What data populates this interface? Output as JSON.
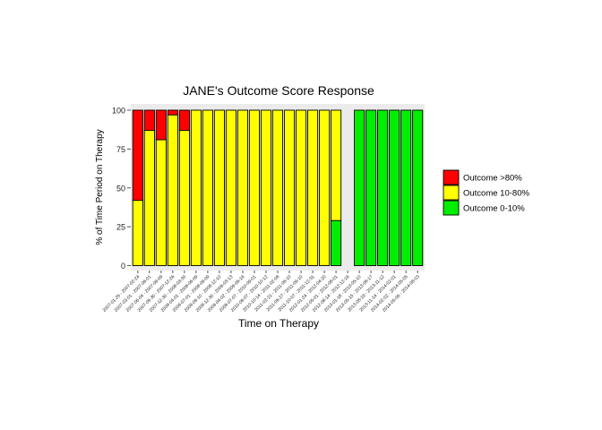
{
  "chart_data": {
    "type": "bar",
    "stacked": true,
    "title": "JANE's Outcome Score Response",
    "xlabel": "Time on Therapy",
    "ylabel": "% of Time Period on Therapy",
    "ylim": [
      0,
      100
    ],
    "yticks": [
      0,
      25,
      50,
      75,
      100
    ],
    "grid": false,
    "legend_position": "right",
    "categories": [
      "2007-01-25 - 2007-02-24",
      "2007-03-01 - 2007-06-01",
      "2007-06-04 - 2007-09-09",
      "2007-09-30 - 2007-12-26",
      "2007-12-30 - 2008-03-30",
      "2008-04-01 - 2008-06-09",
      "2008-07-01 - 2008-09-09",
      "2008-09-10 - 2008-12-10",
      "2008-12-30 - 2009-03-13",
      "2009-04-02 - 2009-06-16",
      "2009-07-07 - 2010-09-01",
      "2010-09-07 - 2010-10-12",
      "2010-10-14 - 2011-02-08",
      "2011-02-21 - 2011-06-10",
      "2011-06-27 - 2011-09-10",
      "2011-10-07 - 2011-12-31",
      "2012-01-24 - 2012-04-20",
      "2012-05-01 - 2012-08-01",
      "2012-08-14 - 2012-12-16",
      "2013-01-18 - 2013-05-10",
      "2013-05-15 - 2013-08-17",
      "2013-08-19 - 2013-11-12",
      "2013-11-14 - 2014-02-01",
      "2014-02-02 - 2014-05-05",
      "2014-05-06 - 2014-08-03"
    ],
    "series": [
      {
        "name": "Outcome 0-10%",
        "color": "#00ee00",
        "values": [
          0,
          0,
          0,
          0,
          0,
          0,
          0,
          0,
          0,
          0,
          0,
          0,
          0,
          0,
          0,
          0,
          0,
          29,
          0,
          100,
          100,
          100,
          100,
          100,
          100
        ]
      },
      {
        "name": "Outcome 10-80%",
        "color": "#ffff00",
        "values": [
          42,
          87,
          81,
          97,
          87,
          100,
          100,
          100,
          100,
          100,
          100,
          100,
          100,
          100,
          100,
          100,
          100,
          71,
          0,
          0,
          0,
          0,
          0,
          0,
          0
        ]
      },
      {
        "name": "Outcome >80%",
        "color": "#ff0000",
        "values": [
          58,
          13,
          19,
          3,
          13,
          0,
          0,
          0,
          0,
          0,
          0,
          0,
          0,
          0,
          0,
          0,
          0,
          0,
          0,
          0,
          0,
          0,
          0,
          0,
          0
        ]
      }
    ]
  }
}
